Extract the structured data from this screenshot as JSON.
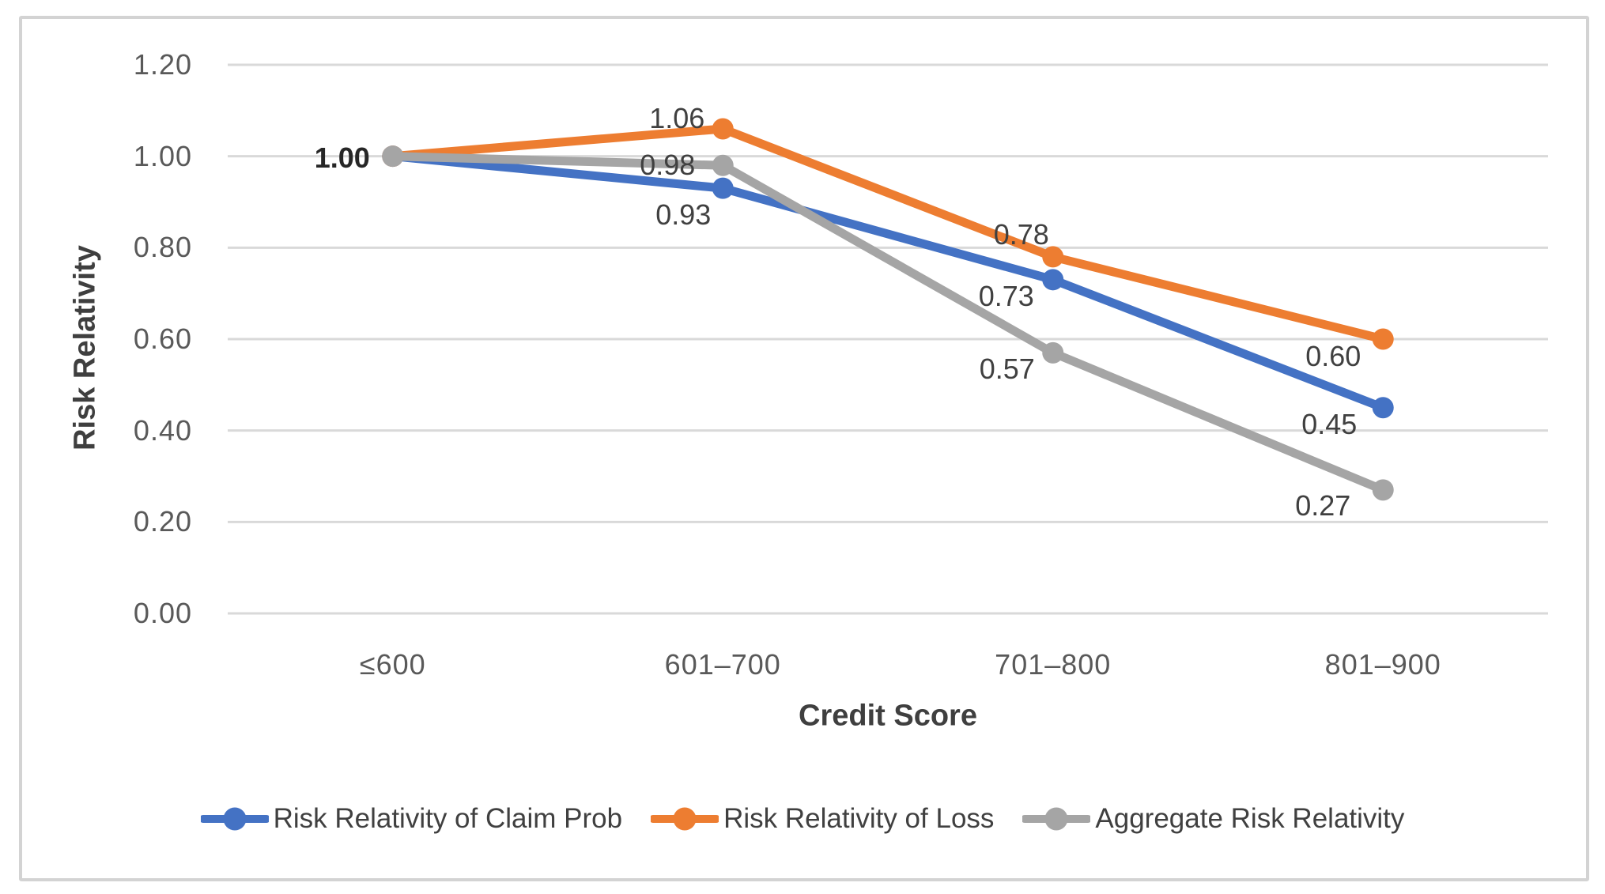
{
  "chart_data": {
    "type": "line",
    "title": "",
    "categories": [
      "≤600",
      "601–700",
      "701–800",
      "801–900"
    ],
    "xlabel": "Credit Score",
    "ylabel": "Risk Relativity",
    "y_ticks": [
      "1.20",
      "1.00",
      "0.80",
      "0.60",
      "0.40",
      "0.20",
      "0.00"
    ],
    "ylim": [
      0,
      1.2
    ],
    "grid": true,
    "legend_position": "bottom",
    "series": [
      {
        "name": "Risk Relativity of Claim Prob",
        "color": "#4472C4",
        "values": [
          1.0,
          0.93,
          0.73,
          0.45
        ],
        "labels": [
          null,
          {
            "text": "0.93",
            "dx": -50,
            "dy": 34
          },
          {
            "text": "0.73",
            "dx": -59,
            "dy": 21
          },
          {
            "text": "0.45",
            "dx": -68,
            "dy": 21
          }
        ]
      },
      {
        "name": "Risk Relativity of Loss",
        "color": "#ED7D31",
        "values": [
          1.0,
          1.06,
          0.78,
          0.6
        ],
        "labels": [
          null,
          {
            "text": "1.06",
            "dx": -58,
            "dy": -13
          },
          {
            "text": "0.78",
            "dx": -40,
            "dy": -28
          },
          {
            "text": "0.60",
            "dx": -63,
            "dy": 22
          }
        ]
      },
      {
        "name": "Aggregate Risk Relativity",
        "color": "#A5A5A5",
        "values": [
          1.0,
          0.98,
          0.57,
          0.27
        ],
        "labels": [
          {
            "text": "1.00",
            "dx": -64,
            "dy": 2,
            "bold": true
          },
          {
            "text": "0.98",
            "dx": -70,
            "dy": 0
          },
          {
            "text": "0.57",
            "dx": -58,
            "dy": 21
          },
          {
            "text": "0.27",
            "dx": -76,
            "dy": 20
          }
        ]
      }
    ]
  },
  "colors": {
    "gridline": "#d9d9d9",
    "tick_text": "#595959",
    "data_label_text": "#404040",
    "axis_title_text": "#3f3f3f",
    "frame_border": "#d3d3d3"
  }
}
